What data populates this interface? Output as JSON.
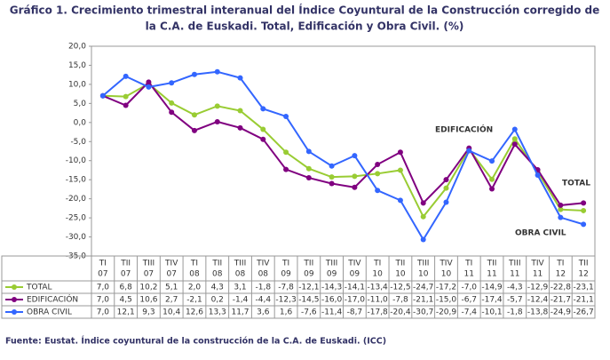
{
  "chart_data": {
    "type": "line",
    "title": [
      "Gráfico 1. Crecimiento trimestral interanual del Índice Coyuntural de la Construcción corregido de",
      "la C.A. de Euskadi. Total, Edificación y Obra Civil. (%)"
    ],
    "categories": [
      [
        "TI",
        "07"
      ],
      [
        "TII",
        "07"
      ],
      [
        "TIII",
        "07"
      ],
      [
        "TIV",
        "07"
      ],
      [
        "TI",
        "08"
      ],
      [
        "TII",
        "08"
      ],
      [
        "TIII",
        "08"
      ],
      [
        "TIV",
        "08"
      ],
      [
        "TI",
        "09"
      ],
      [
        "TII",
        "09"
      ],
      [
        "TIII",
        "09"
      ],
      [
        "TIV",
        "09"
      ],
      [
        "TI",
        "10"
      ],
      [
        "TII",
        "10"
      ],
      [
        "TIII",
        "10"
      ],
      [
        "TIV",
        "10"
      ],
      [
        "TI",
        "11"
      ],
      [
        "TII",
        "11"
      ],
      [
        "TIII",
        "11"
      ],
      [
        "TIV",
        "11"
      ],
      [
        "TI",
        "12"
      ],
      [
        "TII",
        "12"
      ]
    ],
    "series": [
      {
        "name": "TOTAL",
        "color": "#99cc33",
        "values": [
          7.0,
          6.8,
          10.2,
          5.1,
          2.0,
          4.3,
          3.1,
          -1.8,
          -7.8,
          -12.1,
          -14.3,
          -14.1,
          -13.4,
          -12.5,
          -24.7,
          -17.2,
          -7.0,
          -14.9,
          -4.3,
          -12.9,
          -22.8,
          -23.1
        ],
        "value_labels": [
          "7,0",
          "6,8",
          "10,2",
          "5,1",
          "2,0",
          "4,3",
          "3,1",
          "-1,8",
          "-7,8",
          "-12,1",
          "-14,3",
          "-14,1",
          "-13,4",
          "-12,5",
          "-24,7",
          "-17,2",
          "-7,0",
          "-14,9",
          "-4,3",
          "-12,9",
          "-22,8",
          "-23,1"
        ]
      },
      {
        "name": "EDIFICACIÓN",
        "color": "#800080",
        "values": [
          7.0,
          4.5,
          10.6,
          2.7,
          -2.1,
          0.2,
          -1.4,
          -4.4,
          -12.3,
          -14.5,
          -16.0,
          -17.0,
          -11.0,
          -7.8,
          -21.1,
          -15.0,
          -6.7,
          -17.4,
          -5.7,
          -12.4,
          -21.7,
          -21.1
        ],
        "value_labels": [
          "7,0",
          "4,5",
          "10,6",
          "2,7",
          "-2,1",
          "0,2",
          "-1,4",
          "-4,4",
          "-12,3",
          "-14,5",
          "-16,0",
          "-17,0",
          "-11,0",
          "-7,8",
          "-21,1",
          "-15,0",
          "-6,7",
          "-17,4",
          "-5,7",
          "-12,4",
          "-21,7",
          "-21,1"
        ]
      },
      {
        "name": "OBRA CIVIL",
        "color": "#3366ff",
        "values": [
          7.0,
          12.1,
          9.3,
          10.4,
          12.6,
          13.3,
          11.7,
          3.6,
          1.6,
          -7.6,
          -11.4,
          -8.7,
          -17.8,
          -20.4,
          -30.7,
          -20.9,
          -7.4,
          -10.1,
          -1.8,
          -13.8,
          -24.9,
          -26.7
        ],
        "value_labels": [
          "7,0",
          "12,1",
          "9,3",
          "10,4",
          "12,6",
          "13,3",
          "11,7",
          "3,6",
          "1,6",
          "-7,6",
          "-11,4",
          "-8,7",
          "-17,8",
          "-20,4",
          "-30,7",
          "-20,9",
          "-7,4",
          "-10,1",
          "-1,8",
          "-13,8",
          "-24,9",
          "-26,7"
        ]
      }
    ],
    "ylim": [
      -35,
      20
    ],
    "yticks": [
      {
        "value": 20,
        "label": "20,0"
      },
      {
        "value": 15,
        "label": "15,0"
      },
      {
        "value": 10,
        "label": "10,0"
      },
      {
        "value": 5,
        "label": "5,0"
      },
      {
        "value": 0,
        "label": "0,0"
      },
      {
        "value": -5,
        "label": "-5,0"
      },
      {
        "value": -10,
        "label": "-10,0"
      },
      {
        "value": -15,
        "label": "-15,0"
      },
      {
        "value": -20,
        "label": "-20,0"
      },
      {
        "value": -25,
        "label": "-25,0"
      },
      {
        "value": -30,
        "label": "-30,0"
      },
      {
        "value": -35,
        "label": "-35,0"
      }
    ],
    "annotations": [
      {
        "text": "EDIFICACIÓN",
        "color": "#800080"
      },
      {
        "text": "TOTAL",
        "color": "#99cc33"
      },
      {
        "text": "OBRA CIVIL",
        "color": "#3366ff"
      }
    ],
    "source": "Fuente: Eustat. Índice coyuntural de la construcción de la C.A. de Euskadi. (ICC)"
  }
}
